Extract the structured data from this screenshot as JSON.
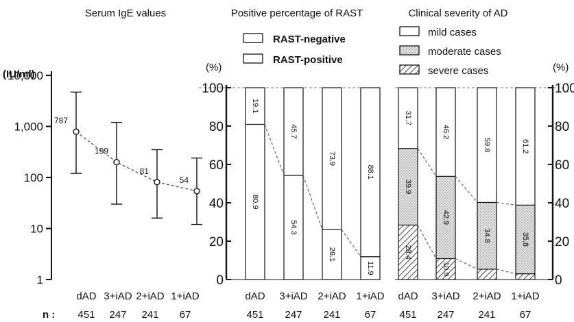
{
  "chart_data": [
    {
      "type": "line",
      "title": "Serum IgE values",
      "ylabel": "(IU/ml)",
      "yscale": "log",
      "ylim": [
        1,
        10000
      ],
      "yticks": [
        "1",
        "10",
        "100",
        "1,000",
        "10,000"
      ],
      "categories": [
        "dAD",
        "3+iAD",
        "2+iAD",
        "1+iAD"
      ],
      "series": [
        {
          "values": [
            787,
            199,
            81,
            54
          ],
          "labels": [
            "787",
            "199",
            "81",
            "54"
          ],
          "error_low": [
            120,
            30,
            16,
            12
          ],
          "error_high": [
            4700,
            1200,
            350,
            240
          ]
        }
      ],
      "n_label": "n :",
      "n": [
        "451",
        "247",
        "241",
        "67"
      ],
      "grid": false,
      "legend": "none"
    },
    {
      "type": "bar",
      "stacked": true,
      "title": "Positive percentage of RAST",
      "ylabel": "(%)",
      "ylim": [
        0,
        100
      ],
      "yticks": [
        "0",
        "20",
        "40",
        "60",
        "80",
        "100"
      ],
      "categories": [
        "dAD",
        "3+iAD",
        "2+iAD",
        "1+iAD"
      ],
      "series": [
        {
          "name": "RAST-positive",
          "values": [
            80.9,
            54.3,
            26.1,
            11.9
          ],
          "labels": [
            "80.9",
            "54.3",
            "26.1",
            "11.9"
          ]
        },
        {
          "name": "RAST-negative",
          "values": [
            19.1,
            45.7,
            73.9,
            88.1
          ],
          "labels": [
            "19.1",
            "45.7",
            "73.9",
            "88.1"
          ]
        }
      ],
      "legend_order": [
        "RAST-negative",
        "RAST-positive"
      ],
      "n": [
        "451",
        "247",
        "241",
        "67"
      ],
      "legend": "top"
    },
    {
      "type": "bar",
      "stacked": true,
      "title": "Clinical severity of AD",
      "ylabel": "(%)",
      "ylim": [
        0,
        100
      ],
      "yticks": [
        "0",
        "20",
        "40",
        "60",
        "80",
        "100"
      ],
      "categories": [
        "dAD",
        "3+iAD",
        "2+iAD",
        "1+iAD"
      ],
      "series": [
        {
          "name": "severe cases",
          "values": [
            28.4,
            10.9,
            5.4,
            3.0
          ],
          "labels": [
            "28.4",
            "10.9",
            "",
            ""
          ]
        },
        {
          "name": "moderate cases",
          "values": [
            39.9,
            42.9,
            34.8,
            35.8
          ],
          "labels": [
            "39.9",
            "42.9",
            "34.8",
            "35.8"
          ]
        },
        {
          "name": "mild cases",
          "values": [
            31.7,
            46.2,
            59.8,
            61.2
          ],
          "labels": [
            "31.7",
            "46.2",
            "59.8",
            "61.2"
          ]
        }
      ],
      "legend_order": [
        "mild cases",
        "moderate cases",
        "severe cases"
      ],
      "n": [
        "451",
        "247",
        "241",
        "67"
      ],
      "legend": "top"
    }
  ]
}
